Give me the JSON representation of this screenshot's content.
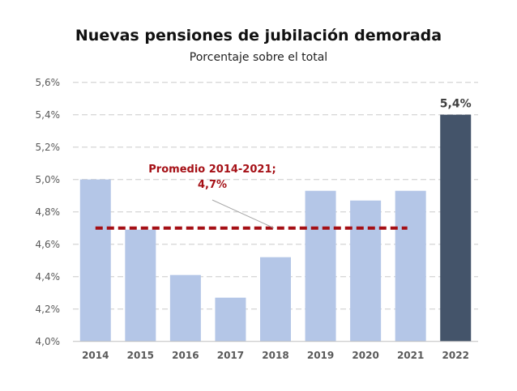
{
  "chart_data": {
    "type": "bar",
    "title": "Nuevas pensiones de jubilación demorada",
    "subtitle": "Porcentaje sobre el total",
    "categories": [
      "2014",
      "2015",
      "2016",
      "2017",
      "2018",
      "2019",
      "2020",
      "2021",
      "2022"
    ],
    "values": [
      5.0,
      4.69,
      4.41,
      4.27,
      4.52,
      4.93,
      4.87,
      4.93,
      5.4
    ],
    "bar_colors": [
      "#b4c6e7",
      "#b4c6e7",
      "#b4c6e7",
      "#b4c6e7",
      "#b4c6e7",
      "#b4c6e7",
      "#b4c6e7",
      "#b4c6e7",
      "#44546a"
    ],
    "data_labels": [
      {
        "category": "2022",
        "label": "5,4%"
      }
    ],
    "yticks": [
      "4,0%",
      "4,2%",
      "4,4%",
      "4,6%",
      "4,8%",
      "5,0%",
      "5,2%",
      "5,4%",
      "5,6%"
    ],
    "ylim": [
      4.0,
      5.6
    ],
    "grid": true,
    "reference_line": {
      "value": 4.7,
      "from": "2014",
      "to": "2021",
      "color": "#a50f15",
      "style": "dashed",
      "label_line1": "Promedio 2014-2021;",
      "label_line2": "4,7%"
    }
  }
}
